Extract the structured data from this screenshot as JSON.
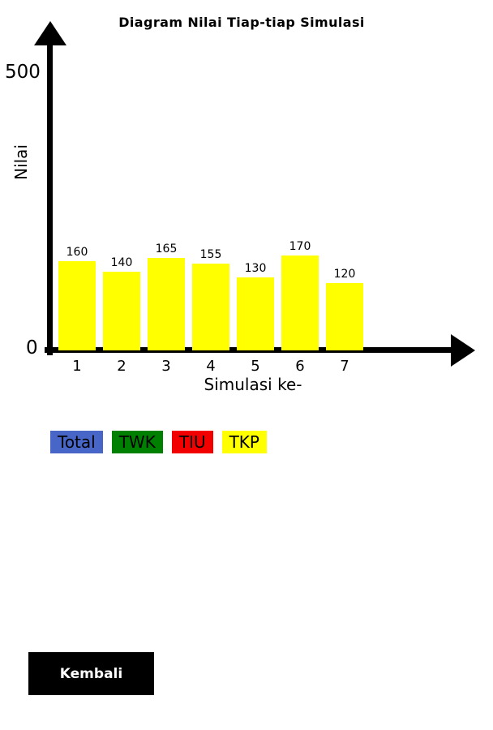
{
  "chart_data": {
    "type": "bar",
    "categories": [
      "1",
      "2",
      "3",
      "4",
      "5",
      "6",
      "7"
    ],
    "values": [
      160,
      140,
      165,
      155,
      130,
      170,
      120
    ],
    "title": "Diagram Nilai Tiap-tiap Simulasi",
    "xlabel": "Simulasi ke-",
    "ylabel": "Nilai",
    "ylim": [
      0,
      500
    ],
    "y_tick_labels": [
      "0",
      "500"
    ],
    "bar_color": "#ffff00",
    "grid": false,
    "legend_position": "bottom"
  },
  "axis": {
    "y_max_label": "500",
    "y_zero_label": "0"
  },
  "legend": {
    "buttons": [
      {
        "label": "Total",
        "color": "#4766c8"
      },
      {
        "label": "TWK",
        "color": "#008000"
      },
      {
        "label": "TIU",
        "color": "#f20000"
      },
      {
        "label": "TKP",
        "color": "#ffff00"
      }
    ]
  },
  "back_button": {
    "label": "Kembali"
  }
}
